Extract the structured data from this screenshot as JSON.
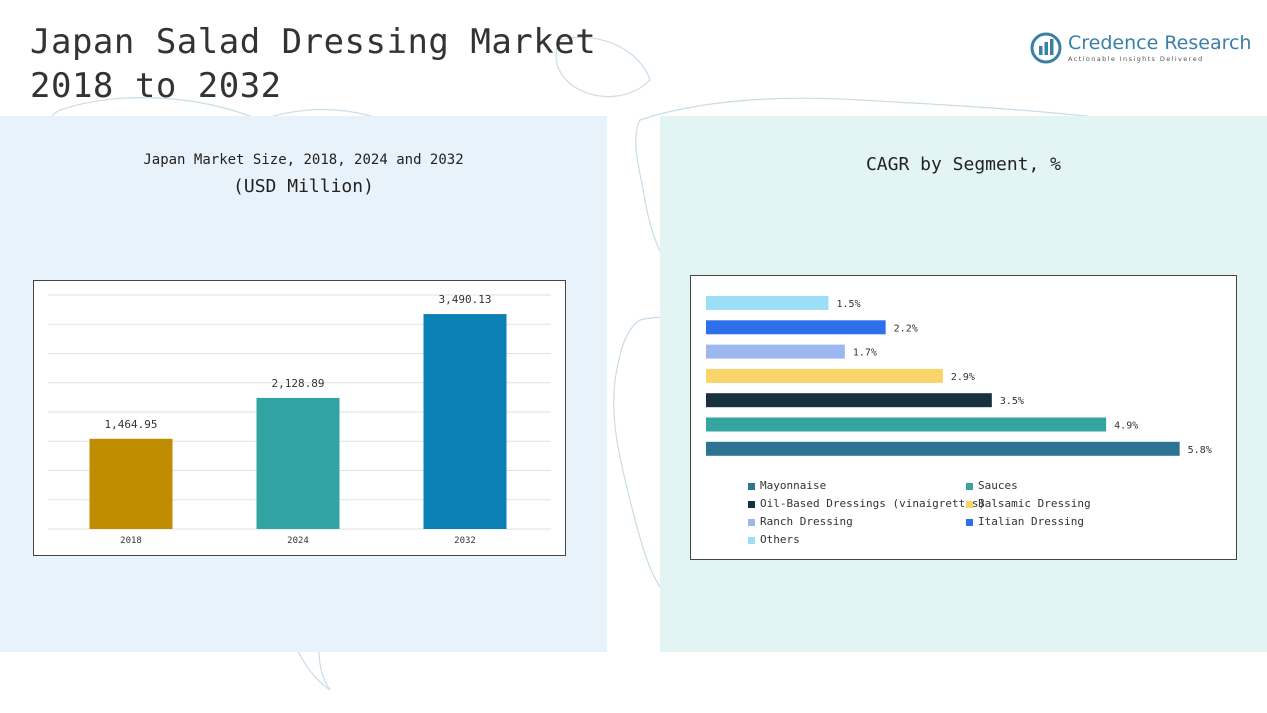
{
  "title_line1": "Japan Salad Dressing Market",
  "title_line2": "2018 to 2032",
  "logo": {
    "name": "Credence Research",
    "tagline": "Actionable Insights Delivered",
    "color": "#3a7fa8"
  },
  "left_panel": {
    "subtitle": "Japan Market Size, 2018, 2024 and 2032",
    "unit": "(USD Million)"
  },
  "right_panel": {
    "title": "CAGR by Segment, %"
  },
  "chart_data": [
    {
      "type": "bar",
      "title": "Japan Market Size, 2018, 2024 and 2032",
      "ylabel": "(USD Million)",
      "categories": [
        "2018",
        "2024",
        "2032"
      ],
      "values": [
        1464.95,
        2128.89,
        3490.13
      ],
      "value_labels": [
        "1,464.95",
        "2,128.89",
        "3,490.13"
      ],
      "colors": [
        "#c08c00",
        "#32a3a3",
        "#0a80b4"
      ],
      "ylim": [
        0,
        3800
      ],
      "grid": true
    },
    {
      "type": "bar",
      "orientation": "horizontal",
      "title": "CAGR by Segment, %",
      "categories": [
        "Others",
        "Italian Dressing",
        "Ranch Dressing",
        "Balsamic Dressing",
        "Oil-Based Dressings (vinaigrettes)",
        "Sauces",
        "Mayonnaise"
      ],
      "values": [
        1.5,
        2.2,
        1.7,
        2.9,
        3.5,
        4.9,
        5.8
      ],
      "value_labels": [
        "1.5%",
        "2.2%",
        "1.7%",
        "2.9%",
        "3.5%",
        "4.9%",
        "5.8%"
      ],
      "colors": [
        "#9adff5",
        "#2e6fec",
        "#9db7f0",
        "#f9d46a",
        "#18313f",
        "#36a49f",
        "#2c7492"
      ],
      "xlim": [
        0,
        6.0
      ],
      "legend_position": "bottom",
      "legend": [
        {
          "label": "Mayonnaise",
          "color": "#2c7492"
        },
        {
          "label": "Sauces",
          "color": "#36a49f"
        },
        {
          "label": "Oil-Based Dressings (vinaigrettes)",
          "color": "#18313f"
        },
        {
          "label": "Balsamic Dressing",
          "color": "#f9d46a"
        },
        {
          "label": "Ranch Dressing",
          "color": "#9db7f0"
        },
        {
          "label": "Italian Dressing",
          "color": "#2e6fec"
        },
        {
          "label": "Others",
          "color": "#9adff5"
        }
      ]
    }
  ]
}
